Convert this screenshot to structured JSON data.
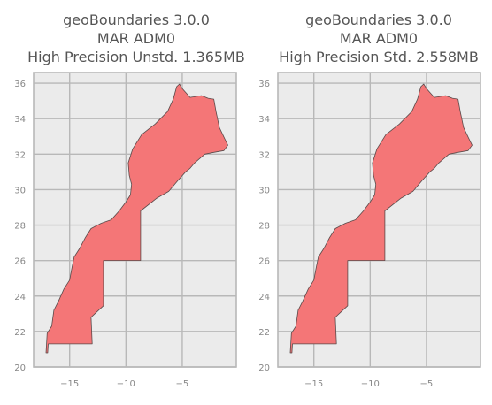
{
  "colors": {
    "plot_background": "#ebebeb",
    "grid": "#b8b8b8",
    "country_fill": "#f47677",
    "country_edge": "#5a4a4a",
    "title": "#555555",
    "tick_label": "#888888"
  },
  "chart_data": [
    {
      "type": "map",
      "title_lines": [
        "geoBoundaries 3.0.0",
        "MAR ADM0",
        "High Precision Unstd. 1.365MB"
      ],
      "xticks": [
        -15,
        -10,
        -5
      ],
      "yticks": [
        20,
        22,
        24,
        26,
        28,
        30,
        32,
        34,
        36
      ],
      "xlim": [
        -18.2,
        -0.2
      ],
      "ylim": [
        20,
        36.6
      ],
      "grid": true,
      "region": "MAR ADM0"
    },
    {
      "type": "map",
      "title_lines": [
        "geoBoundaries 3.0.0",
        "MAR ADM0",
        "High Precision Std. 2.558MB"
      ],
      "xticks": [
        -15,
        -10,
        -5
      ],
      "yticks": [
        20,
        22,
        24,
        26,
        28,
        30,
        32,
        34,
        36
      ],
      "xlim": [
        -18.2,
        -0.2
      ],
      "ylim": [
        20,
        36.6
      ],
      "grid": true,
      "region": "MAR ADM0"
    }
  ],
  "boundary": [
    [
      -17.1,
      20.8
    ],
    [
      -17.0,
      21.9
    ],
    [
      -16.6,
      22.3
    ],
    [
      -16.4,
      23.2
    ],
    [
      -16.0,
      23.7
    ],
    [
      -15.5,
      24.4
    ],
    [
      -15.0,
      24.9
    ],
    [
      -14.8,
      25.6
    ],
    [
      -14.6,
      26.2
    ],
    [
      -14.1,
      26.7
    ],
    [
      -13.6,
      27.3
    ],
    [
      -13.1,
      27.8
    ],
    [
      -12.2,
      28.1
    ],
    [
      -11.3,
      28.3
    ],
    [
      -10.6,
      28.8
    ],
    [
      -10.0,
      29.3
    ],
    [
      -9.6,
      29.7
    ],
    [
      -9.5,
      30.3
    ],
    [
      -9.7,
      30.8
    ],
    [
      -9.8,
      31.5
    ],
    [
      -9.4,
      32.3
    ],
    [
      -8.6,
      33.1
    ],
    [
      -7.4,
      33.7
    ],
    [
      -6.3,
      34.4
    ],
    [
      -5.8,
      35.1
    ],
    [
      -5.5,
      35.8
    ],
    [
      -5.25,
      35.95
    ],
    [
      -5.0,
      35.7
    ],
    [
      -4.3,
      35.2
    ],
    [
      -3.3,
      35.3
    ],
    [
      -2.7,
      35.15
    ],
    [
      -2.2,
      35.1
    ],
    [
      -2.0,
      34.4
    ],
    [
      -1.7,
      33.5
    ],
    [
      -1.25,
      32.9
    ],
    [
      -0.95,
      32.5
    ],
    [
      -1.3,
      32.2
    ],
    [
      -2.2,
      32.1
    ],
    [
      -3.0,
      32.0
    ],
    [
      -3.9,
      31.5
    ],
    [
      -4.3,
      31.2
    ],
    [
      -4.7,
      31.0
    ],
    [
      -5.4,
      30.5
    ],
    [
      -6.2,
      29.9
    ],
    [
      -7.3,
      29.5
    ],
    [
      -8.7,
      28.8
    ],
    [
      -8.7,
      27.7
    ],
    [
      -8.7,
      26.0
    ],
    [
      -12.0,
      26.0
    ],
    [
      -12.0,
      23.45
    ],
    [
      -13.1,
      22.8
    ],
    [
      -13.0,
      21.3
    ],
    [
      -16.9,
      21.3
    ],
    [
      -16.95,
      20.8
    ],
    [
      -17.1,
      20.8
    ]
  ]
}
